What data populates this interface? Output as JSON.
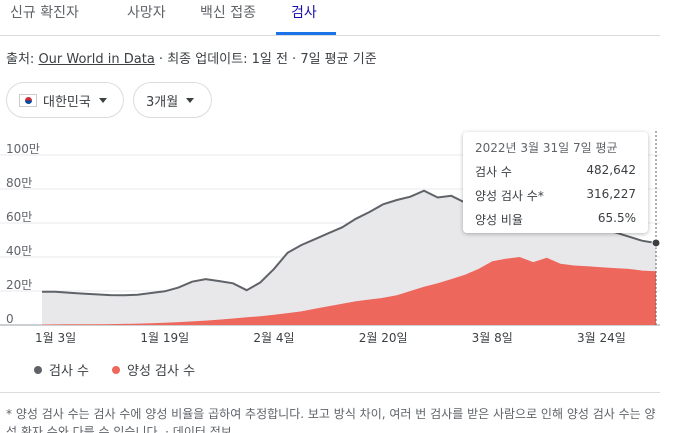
{
  "tabs": [
    {
      "label": "신규 확진자",
      "active": false
    },
    {
      "label": "사망자",
      "active": false
    },
    {
      "label": "백신 접종",
      "active": false
    },
    {
      "label": "검사",
      "active": true
    }
  ],
  "source": {
    "prefix": "출처: ",
    "link": "Our World in Data",
    "suffix": " · 최종 업데이트: 1일 전 · 7일 평균 기준"
  },
  "filters": {
    "region": "대한민국",
    "period": "3개월"
  },
  "tooltip": {
    "title": "2022년 3월 31일 7일 평균",
    "rows": [
      {
        "label": "검사 수",
        "value": "482,642"
      },
      {
        "label": "양성 검사 수*",
        "value": "316,227"
      },
      {
        "label": "양성 비율",
        "value": "65.5%"
      }
    ]
  },
  "legend": [
    {
      "label": "검사 수",
      "color": "#5f6368"
    },
    {
      "label": "양성 검사 수",
      "color": "#ee675c"
    }
  ],
  "footnote": "* 양성 검사 수는 검사 수에 양성 비율을 곱하여 추정합니다. 보고 방식 차이, 여러 번 검사를 받은 사람으로 인해 양성 검사 수는 양성 환자 수와 다를 수 있습니다. · 데이터 정보",
  "chart_data": {
    "type": "area",
    "x": [
      "1월 1일",
      "1월 3일",
      "1월 5일",
      "1월 7일",
      "1월 9일",
      "1월 11일",
      "1월 13일",
      "1월 15일",
      "1월 17일",
      "1월 19일",
      "1월 21일",
      "1월 23일",
      "1월 25일",
      "1월 27일",
      "1월 29일",
      "1월 31일",
      "2월 2일",
      "2월 4일",
      "2월 6일",
      "2월 8일",
      "2월 10일",
      "2월 12일",
      "2월 14일",
      "2월 16일",
      "2월 18일",
      "2월 20일",
      "2월 22일",
      "2월 24일",
      "2월 26일",
      "2월 28일",
      "3월 2일",
      "3월 4일",
      "3월 6일",
      "3월 8일",
      "3월 10일",
      "3월 12일",
      "3월 14일",
      "3월 16일",
      "3월 18일",
      "3월 20일",
      "3월 22일",
      "3월 24일",
      "3월 26일",
      "3월 28일",
      "3월 30일",
      "3월 31일"
    ],
    "x_ticks": [
      "1월 3일",
      "1월 19일",
      "2월 4일",
      "2월 20일",
      "3월 8일",
      "3월 24일"
    ],
    "y_ticks": [
      "0",
      "20만",
      "40만",
      "60만",
      "80만",
      "100만"
    ],
    "ylim": [
      0,
      1000000
    ],
    "series": [
      {
        "name": "검사 수",
        "color": "#5f6368",
        "values": [
          195000,
          195000,
          190000,
          185000,
          180000,
          176000,
          175000,
          178000,
          188000,
          198000,
          220000,
          255000,
          270000,
          258000,
          245000,
          205000,
          250000,
          330000,
          425000,
          470000,
          505000,
          540000,
          575000,
          625000,
          665000,
          710000,
          735000,
          755000,
          790000,
          750000,
          760000,
          720000,
          700000,
          665000,
          660000,
          650000,
          640000,
          630000,
          610000,
          595000,
          580000,
          560000,
          545000,
          520000,
          495000,
          482642
        ]
      },
      {
        "name": "양성 검사 수",
        "color": "#ee675c",
        "values": [
          3000,
          3500,
          4000,
          4500,
          5000,
          5500,
          6500,
          8000,
          10000,
          13000,
          17000,
          21000,
          26000,
          32000,
          38000,
          45000,
          52000,
          60000,
          70000,
          80000,
          95000,
          110000,
          125000,
          140000,
          150000,
          160000,
          175000,
          200000,
          225000,
          245000,
          270000,
          295000,
          330000,
          375000,
          390000,
          400000,
          370000,
          395000,
          360000,
          350000,
          345000,
          340000,
          335000,
          330000,
          320000,
          316227
        ]
      }
    ]
  }
}
